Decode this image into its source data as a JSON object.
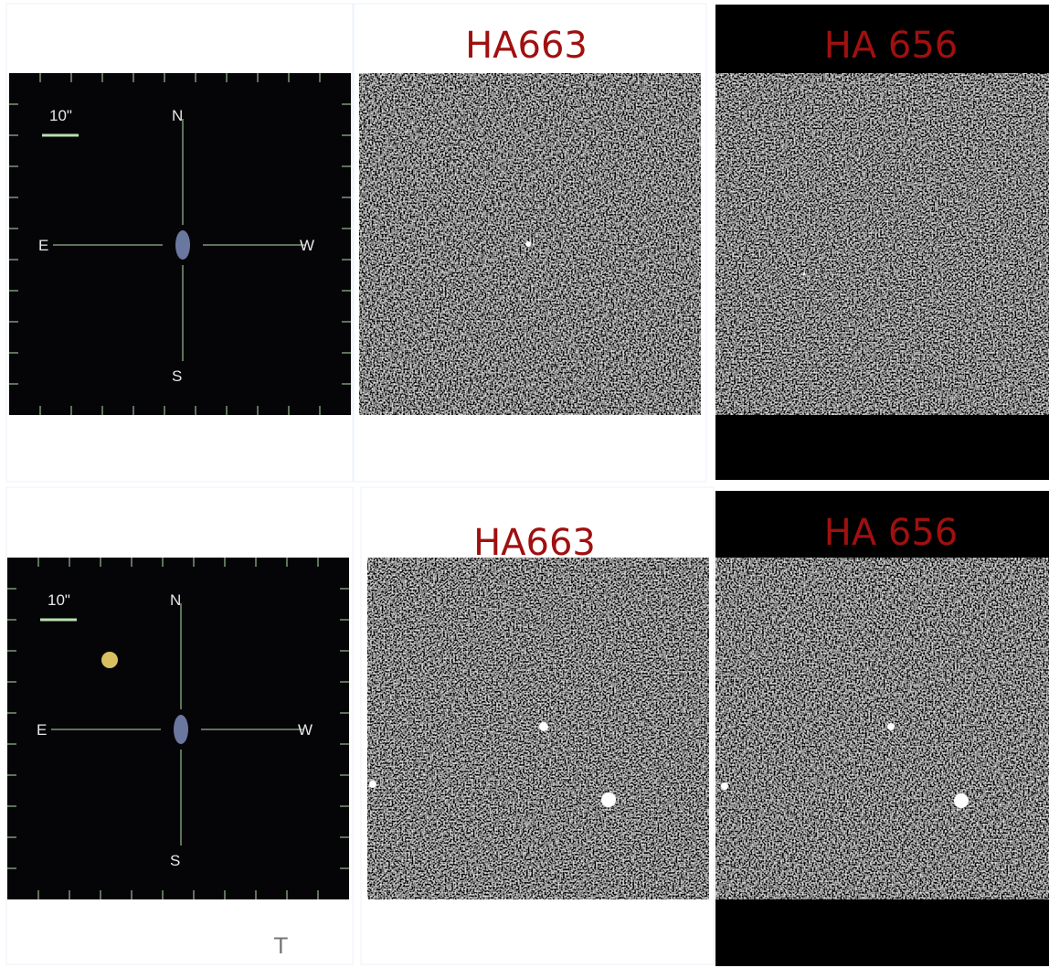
{
  "rows": [
    {
      "finder": {
        "scale": "10\"",
        "north": "N",
        "east": "E",
        "west": "W",
        "south": "S"
      },
      "panels": [
        {
          "title": "HA663"
        },
        {
          "title": "HA 656"
        }
      ]
    },
    {
      "finder": {
        "scale": "10\"",
        "north": "N",
        "east": "E",
        "west": "W",
        "south": "S"
      },
      "panels": [
        {
          "title": "HA663"
        },
        {
          "title": "HA 656"
        }
      ]
    }
  ],
  "footer_fragment": "T"
}
